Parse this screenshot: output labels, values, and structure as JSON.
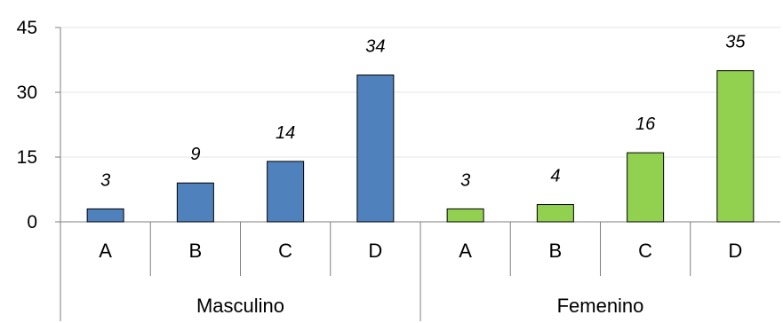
{
  "chart_data": {
    "type": "bar",
    "title": "",
    "xlabel": "",
    "ylabel": "",
    "ylim": [
      0,
      45
    ],
    "yticks": [
      0,
      15,
      30,
      45
    ],
    "grid": true,
    "legend": "none",
    "groups": [
      {
        "name": "Masculino",
        "color": "#4F81BD",
        "categories": [
          "A",
          "B",
          "C",
          "D"
        ],
        "values": [
          3,
          9,
          14,
          34
        ]
      },
      {
        "name": "Femenino",
        "color": "#92D050",
        "categories": [
          "A",
          "B",
          "C",
          "D"
        ],
        "values": [
          3,
          4,
          16,
          35
        ]
      }
    ]
  }
}
